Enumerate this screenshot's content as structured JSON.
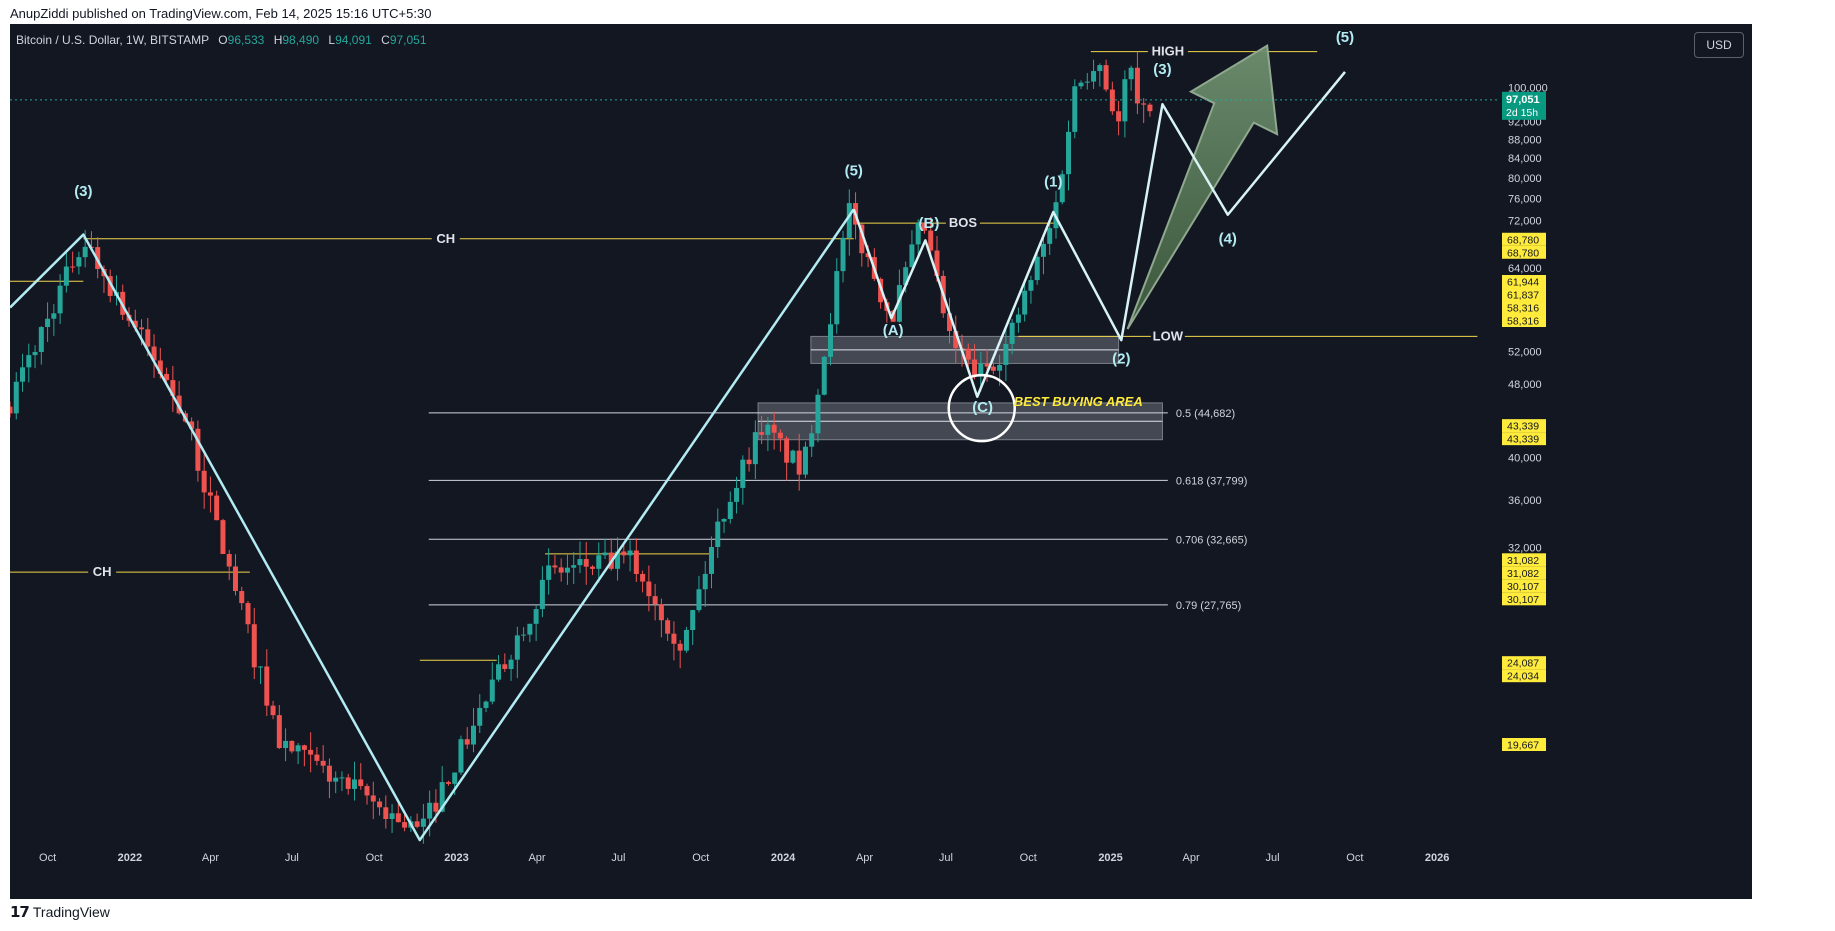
{
  "attribution": "AnupZiddi published on TradingView.com, Feb 14, 2025 15:16 UTC+5:30",
  "symbol": {
    "title": "Bitcoin / U.S. Dollar, 1W, BITSTAMP",
    "open_key": "O",
    "open": "96,533",
    "high_key": "H",
    "high": "98,490",
    "low_key": "L",
    "low": "94,091",
    "close_key": "C",
    "close": "97,051"
  },
  "currency": "USD",
  "brand": "TradingView",
  "colors": {
    "background": "#131722",
    "up": "#26a69a",
    "down": "#ef5350",
    "wave": "#b2ebf2",
    "level": "#f0d64a",
    "fib": "#d1d4dc",
    "arrow": "#5e7b5e",
    "zone": "#9ea3ad",
    "highlight": "#ffeb3b"
  },
  "chart_data": {
    "type": "candlestick",
    "title": "Bitcoin / U.S. Dollar, 1W, BITSTAMP",
    "scale": "log",
    "ylim": [
      19667,
      112000
    ],
    "x_range": [
      "2021-08-20",
      "2026-03-10"
    ],
    "x_ticks": [
      {
        "label": "Oct",
        "date": "2021-10-01"
      },
      {
        "label": "2022",
        "date": "2022-01-01",
        "bold": true
      },
      {
        "label": "Apr",
        "date": "2022-04-01"
      },
      {
        "label": "Jul",
        "date": "2022-07-01"
      },
      {
        "label": "Oct",
        "date": "2022-10-01"
      },
      {
        "label": "2023",
        "date": "2023-01-01",
        "bold": true
      },
      {
        "label": "Apr",
        "date": "2023-04-01"
      },
      {
        "label": "Jul",
        "date": "2023-07-01"
      },
      {
        "label": "Oct",
        "date": "2023-10-01"
      },
      {
        "label": "2024",
        "date": "2024-01-01",
        "bold": true
      },
      {
        "label": "Apr",
        "date": "2024-04-01"
      },
      {
        "label": "Jul",
        "date": "2024-07-01"
      },
      {
        "label": "Oct",
        "date": "2024-10-01"
      },
      {
        "label": "2025",
        "date": "2025-01-01",
        "bold": true
      },
      {
        "label": "Apr",
        "date": "2025-04-01"
      },
      {
        "label": "Jul",
        "date": "2025-07-01"
      },
      {
        "label": "Oct",
        "date": "2025-10-01"
      },
      {
        "label": "2026",
        "date": "2026-01-01",
        "bold": true
      }
    ],
    "y_ticks": [
      {
        "label": "100,000",
        "value": 100000
      },
      {
        "label": "92,000",
        "value": 92000
      },
      {
        "label": "88,000",
        "value": 88000
      },
      {
        "label": "84,000",
        "value": 84000
      },
      {
        "label": "80,000",
        "value": 80000
      },
      {
        "label": "76,000",
        "value": 76000
      },
      {
        "label": "72,000",
        "value": 72000
      },
      {
        "label": "64,000",
        "value": 64000
      },
      {
        "label": "52,000",
        "value": 52000
      },
      {
        "label": "48,000",
        "value": 48000
      },
      {
        "label": "40,000",
        "value": 40000
      },
      {
        "label": "36,000",
        "value": 36000
      },
      {
        "label": "32,000",
        "value": 32000
      }
    ],
    "price_badge": {
      "value": 97051,
      "label": "97,051",
      "countdown": "2d 15h"
    },
    "yellow_labels": [
      {
        "value": 68780,
        "label": "68,780"
      },
      {
        "value": 68780,
        "label": "68,780"
      },
      {
        "value": 61944,
        "label": "61,944"
      },
      {
        "value": 61837,
        "label": "61,837"
      },
      {
        "value": 58316,
        "label": "58,316"
      },
      {
        "value": 58316,
        "label": "58,316"
      },
      {
        "value": 43339,
        "label": "43,339"
      },
      {
        "value": 43339,
        "label": "43,339"
      },
      {
        "value": 31082,
        "label": "31,082"
      },
      {
        "value": 31082,
        "label": "31,082"
      },
      {
        "value": 30107,
        "label": "30,107"
      },
      {
        "value": 30107,
        "label": "30,107"
      },
      {
        "value": 24087,
        "label": "24,087"
      },
      {
        "value": 24034,
        "label": "24,034"
      },
      {
        "value": 19667,
        "label": "19,667"
      }
    ],
    "anchors": [
      [
        "2021-08-20",
        46000
      ],
      [
        "2021-11-10",
        68780
      ],
      [
        "2022-03-01",
        45000
      ],
      [
        "2022-06-18",
        19667
      ],
      [
        "2022-11-21",
        15800
      ],
      [
        "2023-04-15",
        30107
      ],
      [
        "2023-07-15",
        31082
      ],
      [
        "2023-09-11",
        25000
      ],
      [
        "2023-10-23",
        34500
      ],
      [
        "2023-12-08",
        43339
      ],
      [
        "2024-01-23",
        38500
      ],
      [
        "2024-03-14",
        73500
      ],
      [
        "2024-05-01",
        56500
      ],
      [
        "2024-06-05",
        71900
      ],
      [
        "2024-07-05",
        53500
      ],
      [
        "2024-08-05",
        49000
      ],
      [
        "2024-09-06",
        52600
      ],
      [
        "2024-10-29",
        72000
      ],
      [
        "2024-11-22",
        99500
      ],
      [
        "2024-12-17",
        108300
      ],
      [
        "2025-01-13",
        89500
      ],
      [
        "2025-01-20",
        109500
      ],
      [
        "2025-02-03",
        91200
      ],
      [
        "2025-02-14",
        97051
      ]
    ],
    "waves": [
      {
        "points": [
          [
            "2021-08-20",
            58000
          ],
          [
            "2021-11-10",
            69500
          ],
          [
            "2022-11-21",
            15500
          ],
          [
            "2024-03-20",
            74000
          ]
        ],
        "labels": [
          {
            "text": "(3)",
            "at": [
              "2021-11-10",
              76500
            ]
          },
          {
            "text": "(5)",
            "at": [
              "2024-03-20",
              80500
            ]
          }
        ]
      },
      {
        "points": [
          [
            "2024-03-20",
            74000
          ],
          [
            "2024-05-01",
            56500
          ],
          [
            "2024-06-08",
            68500
          ],
          [
            "2024-08-05",
            46500
          ],
          [
            "2024-10-29",
            73500
          ],
          [
            "2025-01-13",
            53500
          ],
          [
            "2025-02-28",
            96000
          ],
          [
            "2025-05-12",
            73000
          ],
          [
            "2025-09-20",
            104000
          ]
        ],
        "labels": [
          {
            "text": "(A)",
            "at": [
              "2024-05-03",
              54200
            ]
          },
          {
            "text": "(B)",
            "at": [
              "2024-06-12",
              70600
            ]
          },
          {
            "text": "(C)",
            "at": [
              "2024-08-11",
              44800
            ]
          },
          {
            "text": "(1)",
            "at": [
              "2024-10-29",
              78300
            ]
          },
          {
            "text": "(2)",
            "at": [
              "2025-01-13",
              50500
            ]
          },
          {
            "text": "(3)",
            "at": [
              "2025-02-28",
              103500
            ]
          },
          {
            "text": "(4)",
            "at": [
              "2025-05-12",
              68000
            ]
          },
          {
            "text": "(5)",
            "at": [
              "2025-09-20",
              112000
            ]
          }
        ]
      }
    ],
    "levels": [
      {
        "text": "HIGH",
        "value": 109350,
        "from": "2024-12-10",
        "to": "2025-08-20",
        "label_at": "2025-03-06"
      },
      {
        "text": "LOW",
        "value": 54000,
        "from": "2024-09-20",
        "to": "2026-02-15",
        "label_at": "2025-03-06"
      },
      {
        "text": "CH",
        "value": 68780,
        "from": "2021-11-10",
        "to": "2024-03-20",
        "label_at": "2022-12-20"
      },
      {
        "text": "CH",
        "value": 30107,
        "from": "2021-08-20",
        "to": "2022-05-15",
        "label_at": "2021-12-01"
      },
      {
        "text": "BOS",
        "value": 71500,
        "from": "2024-03-25",
        "to": "2024-11-01",
        "label_at": "2024-07-20"
      },
      {
        "text": "",
        "value": 61900,
        "from": "2021-08-20",
        "to": "2021-11-10",
        "label_at": ""
      },
      {
        "text": "",
        "value": 31500,
        "from": "2023-04-10",
        "to": "2023-10-15",
        "label_at": ""
      },
      {
        "text": "",
        "value": 24200,
        "from": "2022-11-21",
        "to": "2023-02-15",
        "label_at": ""
      }
    ],
    "fib_levels": [
      {
        "label": "0.5 (44,682)",
        "value": 44682
      },
      {
        "label": "0.618 (37,799)",
        "value": 37799
      },
      {
        "label": "0.706 (32,665)",
        "value": 32665
      },
      {
        "label": "0.79 (27,765)",
        "value": 27765
      }
    ],
    "zones": [
      {
        "from": "2024-02-01",
        "to": "2025-01-10",
        "low": 50500,
        "high": 54000
      },
      {
        "from": "2023-12-04",
        "to": "2025-02-28",
        "low": 41800,
        "high": 45800
      }
    ],
    "best_buying_label": "BEST BUYING AREA",
    "projection_arrow": {
      "from": [
        "2025-01-20",
        55000
      ],
      "tip": [
        "2025-06-25",
        111000
      ]
    }
  }
}
